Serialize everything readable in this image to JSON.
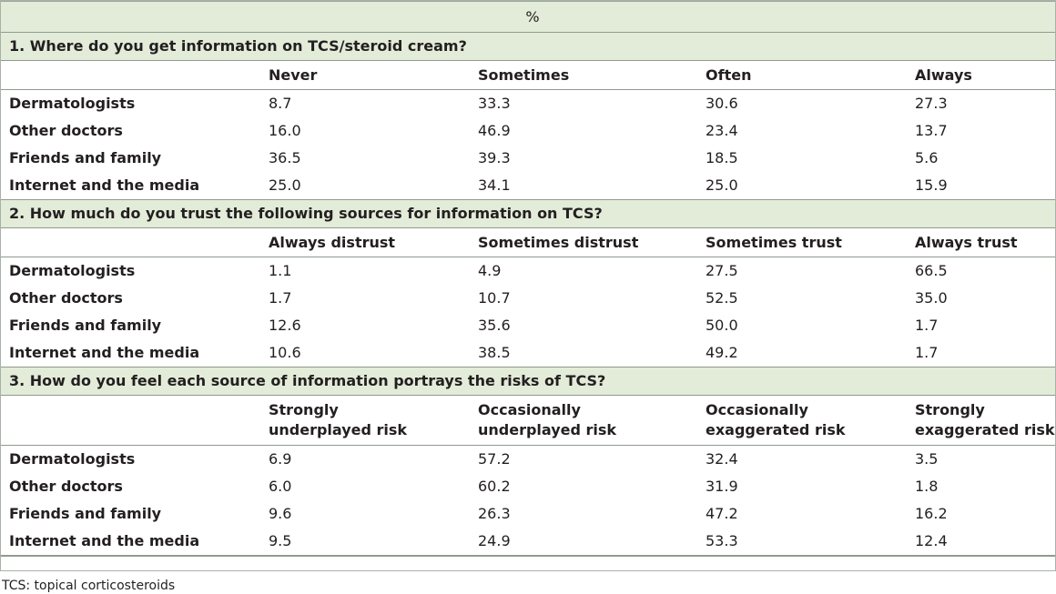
{
  "header": {
    "percent_label": "%"
  },
  "sections": [
    {
      "question": "1. Where do you get information on TCS/steroid cream?",
      "columns": [
        "Never",
        "Sometimes",
        "Often",
        "Always"
      ],
      "rows": [
        {
          "label": "Dermatologists",
          "values": [
            "8.7",
            "33.3",
            "30.6",
            "27.3"
          ]
        },
        {
          "label": "Other doctors",
          "values": [
            "16.0",
            "46.9",
            "23.4",
            "13.7"
          ]
        },
        {
          "label": "Friends and family",
          "values": [
            "36.5",
            "39.3",
            "18.5",
            "5.6"
          ]
        },
        {
          "label": "Internet and the media",
          "values": [
            "25.0",
            "34.1",
            "25.0",
            "15.9"
          ]
        }
      ]
    },
    {
      "question": "2. How much do you trust the following sources for information on TCS?",
      "columns": [
        "Always distrust",
        "Sometimes distrust",
        "Sometimes trust",
        "Always trust"
      ],
      "rows": [
        {
          "label": "Dermatologists",
          "values": [
            "1.1",
            "4.9",
            "27.5",
            "66.5"
          ]
        },
        {
          "label": "Other doctors",
          "values": [
            "1.7",
            "10.7",
            "52.5",
            "35.0"
          ]
        },
        {
          "label": "Friends and family",
          "values": [
            "12.6",
            "35.6",
            "50.0",
            "1.7"
          ]
        },
        {
          "label": "Internet and the media",
          "values": [
            "10.6",
            "38.5",
            "49.2",
            "1.7"
          ]
        }
      ]
    },
    {
      "question": "3. How do you feel each source of information portrays the risks of TCS?",
      "columns": [
        [
          "Strongly",
          "underplayed risk"
        ],
        [
          "Occasionally",
          "underplayed risk"
        ],
        [
          "Occasionally",
          "exaggerated risk"
        ],
        [
          "Strongly",
          "exaggerated risk"
        ]
      ],
      "rows": [
        {
          "label": "Dermatologists",
          "values": [
            "6.9",
            "57.2",
            "32.4",
            "3.5"
          ]
        },
        {
          "label": "Other doctors",
          "values": [
            "6.0",
            "60.2",
            "31.9",
            "1.8"
          ]
        },
        {
          "label": "Friends and family",
          "values": [
            "9.6",
            "26.3",
            "47.2",
            "16.2"
          ]
        },
        {
          "label": "Internet and the media",
          "values": [
            "9.5",
            "24.9",
            "53.3",
            "12.4"
          ]
        }
      ]
    }
  ],
  "footnote": "TCS: topical corticosteroids"
}
